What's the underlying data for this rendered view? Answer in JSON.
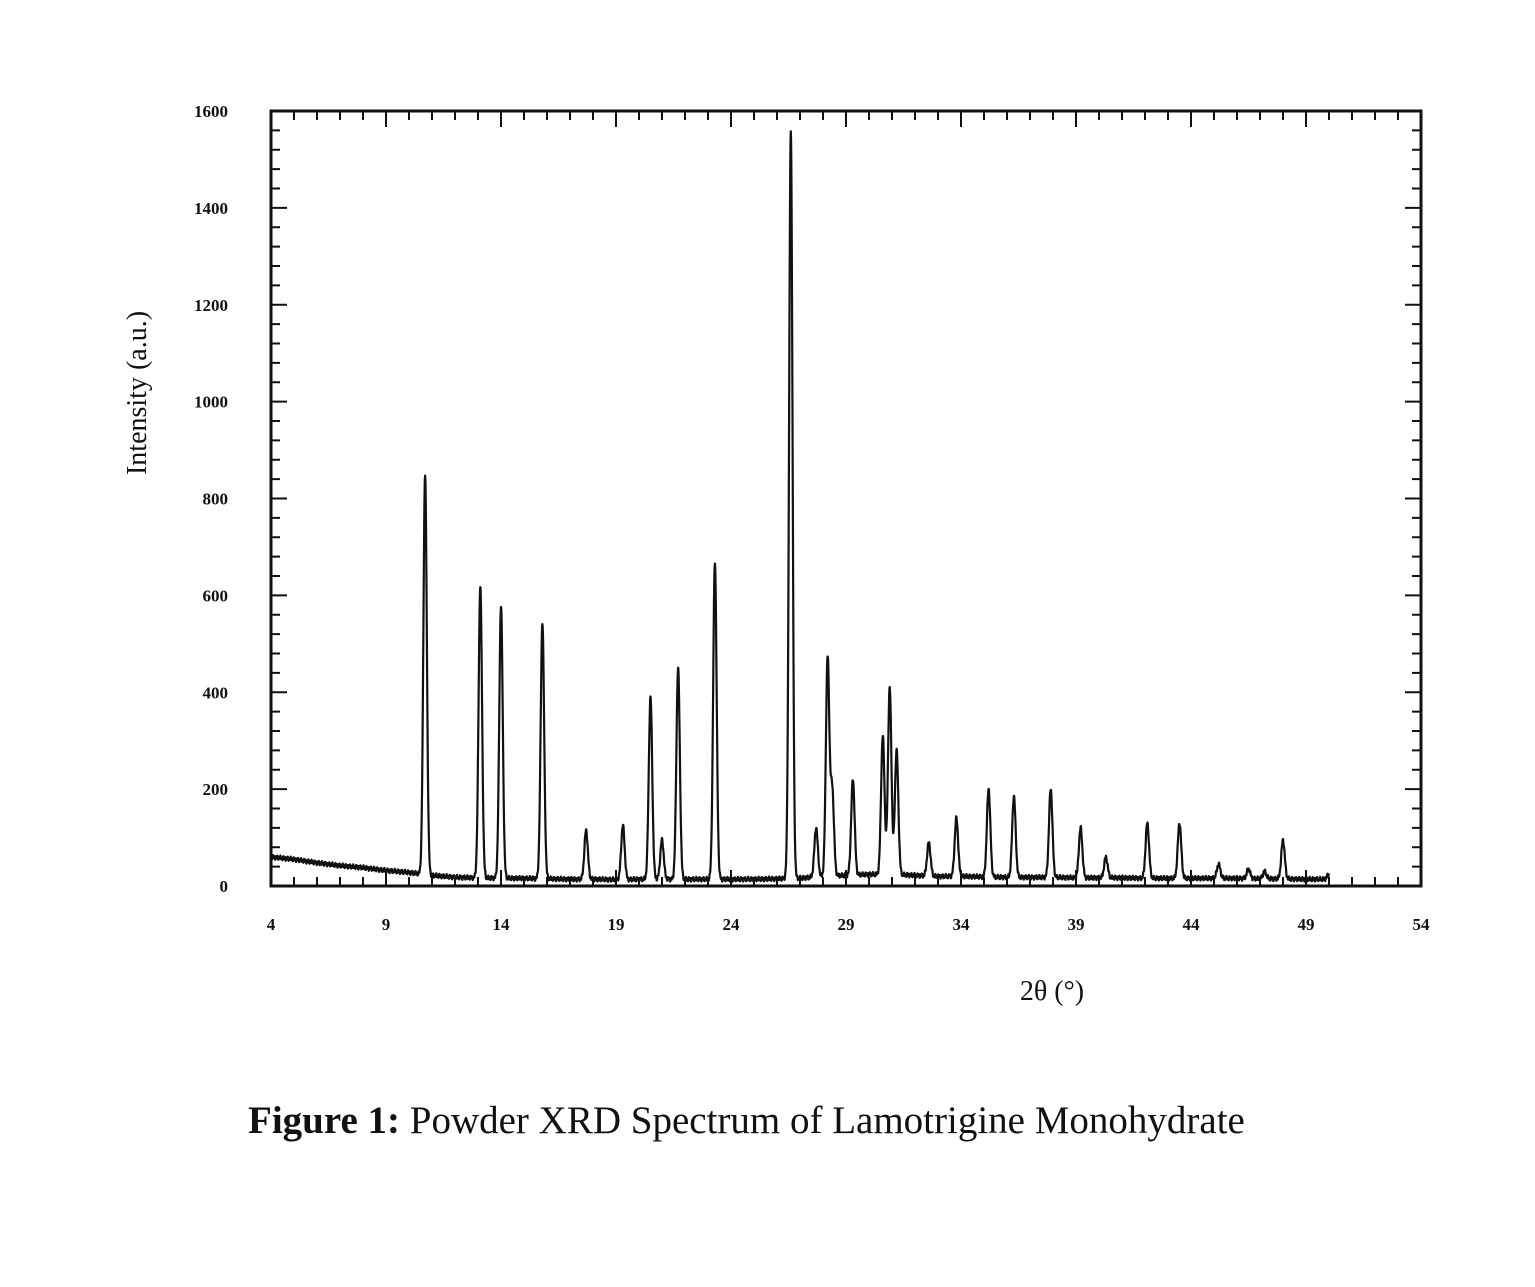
{
  "chart_data": {
    "type": "line",
    "xlabel": "2θ (°)",
    "ylabel": "Intensity (a.u.)",
    "xlim": [
      4,
      54
    ],
    "ylim": [
      0,
      1600
    ],
    "x_ticks": [
      "4",
      "9",
      "14",
      "19",
      "24",
      "29",
      "34",
      "39",
      "44",
      "49",
      "54"
    ],
    "y_ticks": [
      "0",
      "200",
      "400",
      "600",
      "800",
      "1000",
      "1200",
      "1400",
      "1600"
    ],
    "grid": false,
    "baseline": [
      [
        4,
        60
      ],
      [
        5,
        55
      ],
      [
        6,
        48
      ],
      [
        7,
        42
      ],
      [
        8,
        38
      ],
      [
        9,
        32
      ],
      [
        10,
        28
      ],
      [
        11,
        22
      ],
      [
        12,
        18
      ],
      [
        13,
        17
      ],
      [
        14,
        16
      ],
      [
        15,
        16
      ],
      [
        16,
        15
      ],
      [
        17,
        14
      ],
      [
        18,
        14
      ],
      [
        19,
        13
      ],
      [
        20,
        14
      ],
      [
        21,
        14
      ],
      [
        22,
        14
      ],
      [
        23,
        14
      ],
      [
        24,
        14
      ],
      [
        25,
        14
      ],
      [
        26,
        15
      ],
      [
        27,
        16
      ],
      [
        28,
        20
      ],
      [
        29,
        22
      ],
      [
        30,
        24
      ],
      [
        31,
        24
      ],
      [
        32,
        22
      ],
      [
        33,
        20
      ],
      [
        34,
        20
      ],
      [
        35,
        19
      ],
      [
        36,
        18
      ],
      [
        37,
        18
      ],
      [
        38,
        18
      ],
      [
        39,
        17
      ],
      [
        40,
        17
      ],
      [
        41,
        17
      ],
      [
        42,
        16
      ],
      [
        43,
        16
      ],
      [
        44,
        16
      ],
      [
        45,
        16
      ],
      [
        46,
        16
      ],
      [
        47,
        15
      ],
      [
        48,
        15
      ],
      [
        49,
        14
      ],
      [
        50,
        14
      ]
    ],
    "peaks": [
      {
        "x": 10.7,
        "y": 850
      },
      {
        "x": 13.1,
        "y": 620
      },
      {
        "x": 14.0,
        "y": 580
      },
      {
        "x": 15.8,
        "y": 545
      },
      {
        "x": 17.7,
        "y": 115
      },
      {
        "x": 19.3,
        "y": 125
      },
      {
        "x": 20.5,
        "y": 390
      },
      {
        "x": 21.0,
        "y": 95
      },
      {
        "x": 21.7,
        "y": 450
      },
      {
        "x": 23.3,
        "y": 670
      },
      {
        "x": 26.6,
        "y": 1560
      },
      {
        "x": 27.7,
        "y": 120
      },
      {
        "x": 28.2,
        "y": 470
      },
      {
        "x": 28.4,
        "y": 200
      },
      {
        "x": 29.3,
        "y": 220
      },
      {
        "x": 30.6,
        "y": 310
      },
      {
        "x": 30.9,
        "y": 410
      },
      {
        "x": 31.2,
        "y": 280
      },
      {
        "x": 32.6,
        "y": 90
      },
      {
        "x": 33.8,
        "y": 140
      },
      {
        "x": 35.2,
        "y": 200
      },
      {
        "x": 36.3,
        "y": 185
      },
      {
        "x": 37.9,
        "y": 200
      },
      {
        "x": 39.2,
        "y": 120
      },
      {
        "x": 40.3,
        "y": 60
      },
      {
        "x": 42.1,
        "y": 130
      },
      {
        "x": 43.5,
        "y": 130
      },
      {
        "x": 45.2,
        "y": 45
      },
      {
        "x": 46.5,
        "y": 35
      },
      {
        "x": 47.2,
        "y": 30
      },
      {
        "x": 48.0,
        "y": 95
      },
      {
        "x": 50.0,
        "y": 25
      }
    ]
  },
  "caption": {
    "prefix": "Figure 1:",
    "text": " Powder XRD Spectrum of Lamotrigine Monohydrate"
  }
}
